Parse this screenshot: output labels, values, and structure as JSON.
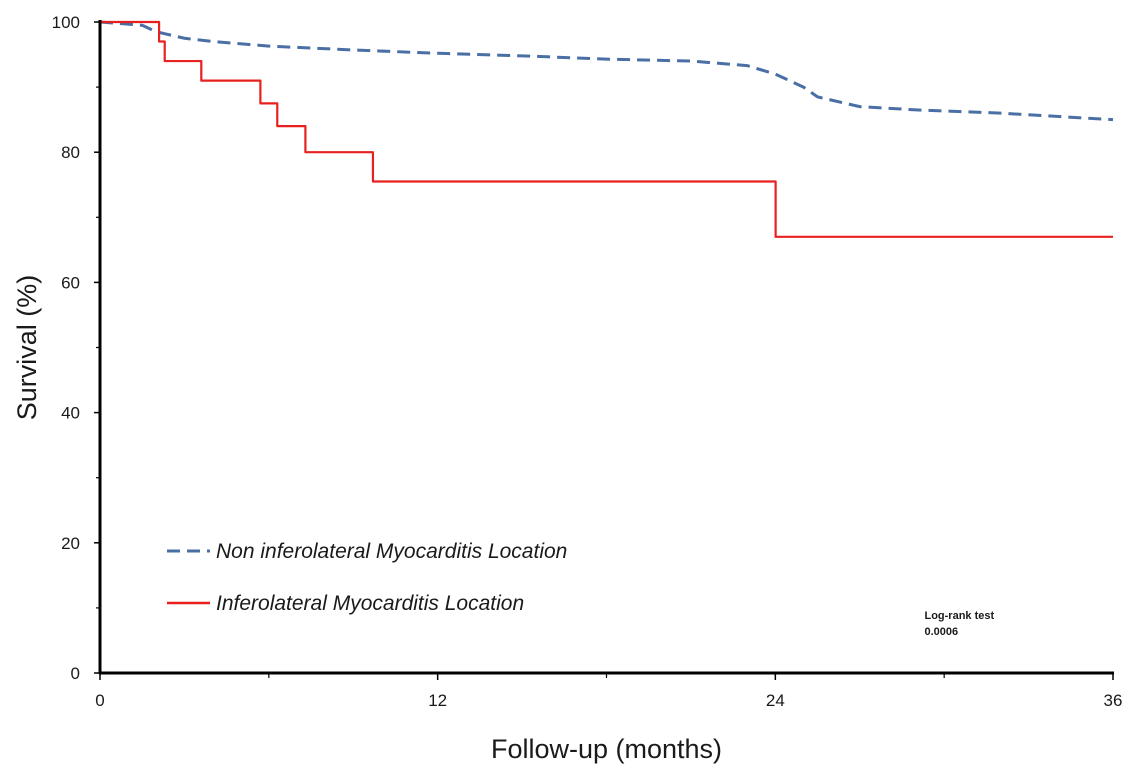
{
  "chart_data": {
    "type": "line",
    "xlabel": "Follow-up (months)",
    "ylabel": "Survival (%)",
    "xlim": [
      0,
      36
    ],
    "ylim": [
      0,
      100
    ],
    "x_ticks": [
      0,
      12,
      24,
      36
    ],
    "y_ticks": [
      0,
      20,
      40,
      60,
      80,
      100
    ],
    "grid": false,
    "legend_position": "bottom-left",
    "series": [
      {
        "name": "Non inferolateral  Myocarditis Location",
        "color": "#4a6fa5",
        "style": "dashed",
        "step": false,
        "points": [
          [
            0,
            100
          ],
          [
            1.5,
            99.5
          ],
          [
            2,
            98.5
          ],
          [
            3,
            97.5
          ],
          [
            4,
            97
          ],
          [
            6,
            96.3
          ],
          [
            9,
            95.7
          ],
          [
            12,
            95.2
          ],
          [
            15,
            94.8
          ],
          [
            18,
            94.3
          ],
          [
            21,
            94
          ],
          [
            23,
            93.3
          ],
          [
            24,
            92
          ],
          [
            25,
            90
          ],
          [
            25.5,
            88.5
          ],
          [
            27,
            87
          ],
          [
            29,
            86.5
          ],
          [
            32,
            86
          ],
          [
            36,
            85
          ]
        ]
      },
      {
        "name": "Inferolateral Myocarditis Location",
        "color": "#e8201f",
        "style": "solid",
        "step": true,
        "points": [
          [
            0,
            100
          ],
          [
            2,
            100
          ],
          [
            2.1,
            97
          ],
          [
            2.3,
            94
          ],
          [
            3.5,
            94
          ],
          [
            3.6,
            91
          ],
          [
            5.6,
            91
          ],
          [
            5.7,
            87.5
          ],
          [
            6.2,
            87.5
          ],
          [
            6.3,
            84
          ],
          [
            7.2,
            84
          ],
          [
            7.3,
            80
          ],
          [
            9.6,
            80
          ],
          [
            9.7,
            75.5
          ],
          [
            24,
            75.5
          ],
          [
            24.01,
            67
          ],
          [
            36,
            67
          ]
        ]
      }
    ],
    "annotation": {
      "lines": [
        "Log-rank test",
        "0.0006"
      ],
      "x": 29.3,
      "y": 8.3
    }
  }
}
